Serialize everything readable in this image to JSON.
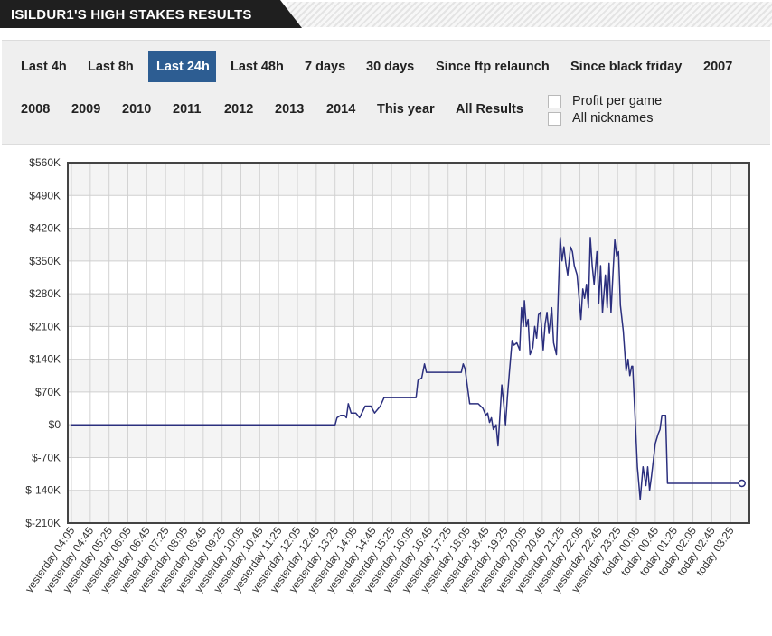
{
  "header": {
    "title": "ISILDUR1'S HIGH STAKES RESULTS"
  },
  "filters": {
    "row1": [
      "Last 4h",
      "Last 8h",
      "Last 24h",
      "Last 48h",
      "7 days",
      "30 days",
      "Since ftp relaunch",
      "Since black friday",
      "2007"
    ],
    "row2": [
      "2008",
      "2009",
      "2010",
      "2011",
      "2012",
      "2013",
      "2014",
      "This year",
      "All Results"
    ],
    "active": "Last 24h",
    "options": [
      {
        "label": "Profit per game",
        "checked": false
      },
      {
        "label": "All nicknames",
        "checked": false
      }
    ]
  },
  "colors": {
    "line": "#2b2f7e",
    "active_tab": "#2d5d92",
    "title_bg": "#1f1f1f"
  },
  "chart_data": {
    "type": "line",
    "ylim": [
      -210000,
      560000
    ],
    "yticks": [
      "$560K",
      "$490K",
      "$420K",
      "$350K",
      "$280K",
      "$210K",
      "$140K",
      "$70K",
      "$0",
      "$-70K",
      "$-140K",
      "$-210K"
    ],
    "xticks": [
      "yesterday 04:05",
      "yesterday 04:45",
      "yesterday 05:25",
      "yesterday 06:05",
      "yesterday 06:45",
      "yesterday 07:25",
      "yesterday 08:05",
      "yesterday 08:45",
      "yesterday 09:25",
      "yesterday 10:05",
      "yesterday 10:45",
      "yesterday 11:25",
      "yesterday 12:05",
      "yesterday 12:45",
      "yesterday 13:25",
      "yesterday 14:05",
      "yesterday 14:45",
      "yesterday 15:25",
      "yesterday 16:05",
      "yesterday 16:45",
      "yesterday 17:25",
      "yesterday 18:05",
      "yesterday 18:45",
      "yesterday 19:25",
      "yesterday 20:05",
      "yesterday 20:45",
      "yesterday 21:25",
      "yesterday 22:05",
      "yesterday 22:45",
      "yesterday 23:25",
      "today 00:05",
      "today 00:45",
      "today 01:25",
      "today 02:05",
      "today 02:45",
      "today 03:25"
    ],
    "grid": true,
    "series": [
      {
        "points": [
          [
            0,
            0
          ],
          [
            14.0,
            0
          ],
          [
            14.1,
            15000
          ],
          [
            14.3,
            20000
          ],
          [
            14.5,
            20000
          ],
          [
            14.6,
            15000
          ],
          [
            14.7,
            45000
          ],
          [
            14.85,
            25000
          ],
          [
            15.1,
            25000
          ],
          [
            15.3,
            15000
          ],
          [
            15.6,
            40000
          ],
          [
            15.9,
            40000
          ],
          [
            16.1,
            25000
          ],
          [
            16.4,
            40000
          ],
          [
            16.6,
            58000
          ],
          [
            18.3,
            58000
          ],
          [
            18.4,
            95000
          ],
          [
            18.6,
            100000
          ],
          [
            18.75,
            130000
          ],
          [
            18.85,
            112000
          ],
          [
            20.7,
            112000
          ],
          [
            20.8,
            130000
          ],
          [
            20.9,
            120000
          ],
          [
            21.15,
            45000
          ],
          [
            21.6,
            45000
          ],
          [
            21.85,
            35000
          ],
          [
            22.0,
            20000
          ],
          [
            22.1,
            25000
          ],
          [
            22.2,
            5000
          ],
          [
            22.3,
            15000
          ],
          [
            22.4,
            -10000
          ],
          [
            22.55,
            0
          ],
          [
            22.65,
            -45000
          ],
          [
            22.75,
            20000
          ],
          [
            22.85,
            85000
          ],
          [
            22.95,
            45000
          ],
          [
            23.05,
            0
          ],
          [
            23.15,
            60000
          ],
          [
            23.25,
            110000
          ],
          [
            23.4,
            180000
          ],
          [
            23.5,
            170000
          ],
          [
            23.65,
            175000
          ],
          [
            23.8,
            160000
          ],
          [
            23.9,
            250000
          ],
          [
            24.0,
            210000
          ],
          [
            24.05,
            265000
          ],
          [
            24.15,
            210000
          ],
          [
            24.25,
            225000
          ],
          [
            24.35,
            150000
          ],
          [
            24.5,
            165000
          ],
          [
            24.6,
            210000
          ],
          [
            24.7,
            185000
          ],
          [
            24.8,
            235000
          ],
          [
            24.9,
            240000
          ],
          [
            25.05,
            160000
          ],
          [
            25.15,
            215000
          ],
          [
            25.25,
            240000
          ],
          [
            25.35,
            195000
          ],
          [
            25.5,
            250000
          ],
          [
            25.6,
            175000
          ],
          [
            25.75,
            150000
          ],
          [
            25.85,
            280000
          ],
          [
            25.95,
            400000
          ],
          [
            26.05,
            350000
          ],
          [
            26.15,
            380000
          ],
          [
            26.25,
            345000
          ],
          [
            26.35,
            320000
          ],
          [
            26.5,
            380000
          ],
          [
            26.6,
            370000
          ],
          [
            26.7,
            340000
          ],
          [
            26.85,
            320000
          ],
          [
            27.05,
            225000
          ],
          [
            27.15,
            290000
          ],
          [
            27.25,
            270000
          ],
          [
            27.35,
            300000
          ],
          [
            27.45,
            250000
          ],
          [
            27.55,
            400000
          ],
          [
            27.65,
            340000
          ],
          [
            27.75,
            300000
          ],
          [
            27.9,
            370000
          ],
          [
            28.0,
            260000
          ],
          [
            28.1,
            340000
          ],
          [
            28.2,
            240000
          ],
          [
            28.35,
            320000
          ],
          [
            28.45,
            250000
          ],
          [
            28.55,
            345000
          ],
          [
            28.65,
            240000
          ],
          [
            28.75,
            320000
          ],
          [
            28.85,
            395000
          ],
          [
            28.95,
            360000
          ],
          [
            29.05,
            370000
          ],
          [
            29.15,
            255000
          ],
          [
            29.3,
            200000
          ],
          [
            29.45,
            115000
          ],
          [
            29.55,
            140000
          ],
          [
            29.65,
            105000
          ],
          [
            29.75,
            125000
          ],
          [
            29.8,
            125000
          ],
          [
            30.05,
            -90000
          ],
          [
            30.2,
            -160000
          ],
          [
            30.35,
            -90000
          ],
          [
            30.5,
            -130000
          ],
          [
            30.6,
            -90000
          ],
          [
            30.7,
            -140000
          ],
          [
            30.8,
            -110000
          ],
          [
            31.0,
            -40000
          ],
          [
            31.15,
            -20000
          ],
          [
            31.25,
            -10000
          ],
          [
            31.35,
            20000
          ],
          [
            31.55,
            20000
          ],
          [
            31.65,
            -125000
          ],
          [
            35.6,
            -125000
          ]
        ]
      }
    ]
  }
}
